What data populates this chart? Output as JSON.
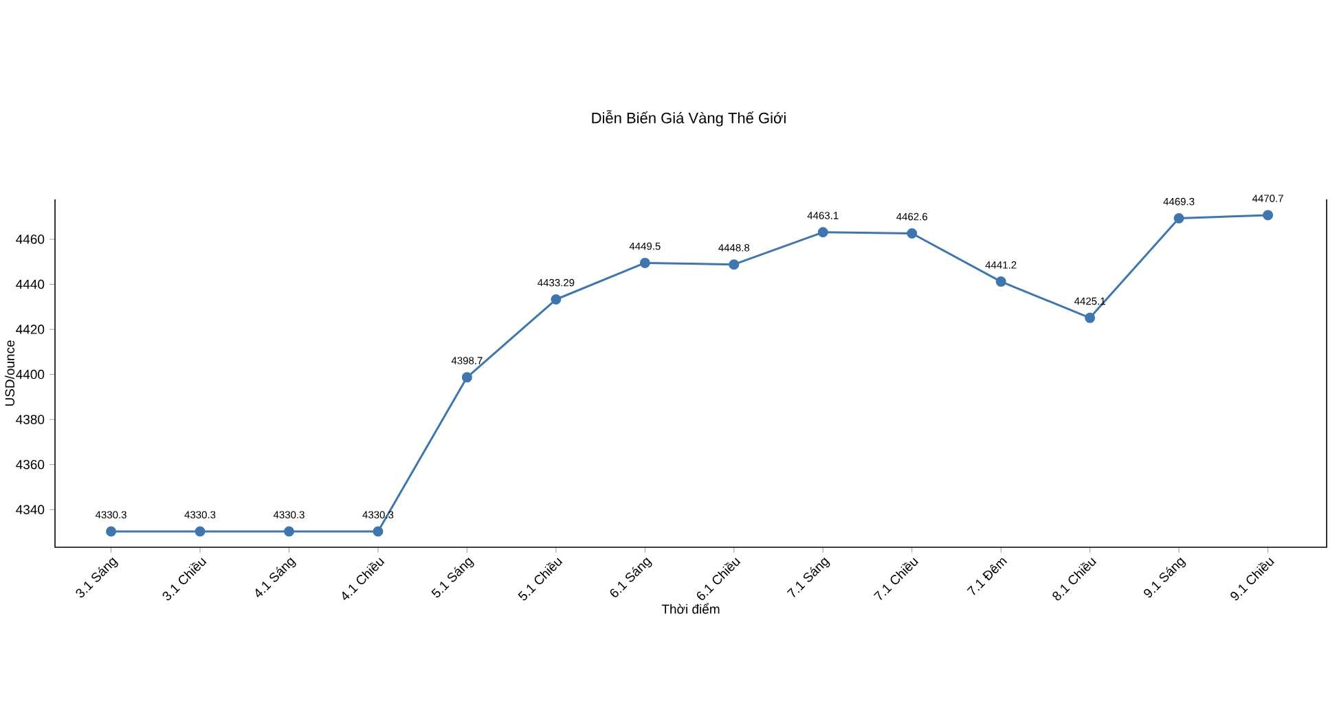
{
  "chart_data": {
    "type": "line",
    "title": "Diễn Biến Giá Vàng Thế Giới",
    "xlabel": "Thời điểm",
    "ylabel": "USD/ounce",
    "categories": [
      "3.1 Sáng",
      "3.1 Chiều",
      "4.1 Sáng",
      "4.1 Chiều",
      "5.1 Sáng",
      "5.1 Chiều",
      "6.1 Sáng",
      "6.1 Chiều",
      "7.1 Sáng",
      "7.1 Chiều",
      "7.1 Đêm",
      "8.1 Chiều",
      "9.1 Sáng",
      "9.1 Chiều"
    ],
    "values": [
      4330.3,
      4330.3,
      4330.3,
      4330.3,
      4398.7,
      4433.29,
      4449.5,
      4448.8,
      4463.1,
      4462.6,
      4441.2,
      4425.1,
      4469.3,
      4470.7
    ],
    "value_labels": [
      "4330.3",
      "4330.3",
      "4330.3",
      "4330.3",
      "4398.7",
      "4433.29",
      "4449.5",
      "4448.8",
      "4463.1",
      "4462.6",
      "4441.2",
      "4425.1",
      "4469.3",
      "4470.7"
    ],
    "color": "#3e76ad",
    "marker": "circle",
    "line_style": "solid",
    "grid": false,
    "ylim": [
      4323.3,
      4477.7
    ],
    "yticks": [
      4340,
      4360,
      4380,
      4400,
      4420,
      4440,
      4460
    ]
  }
}
